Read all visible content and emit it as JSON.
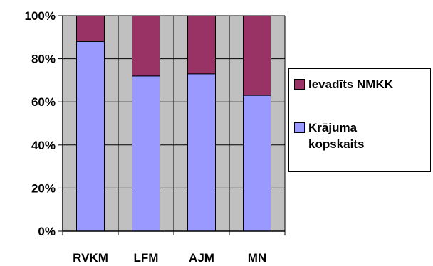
{
  "chart_data": {
    "type": "bar",
    "stacked": true,
    "percent": true,
    "categories": [
      "RVKM",
      "LFM",
      "AJM",
      "MN"
    ],
    "series": [
      {
        "name": "Krājuma kopskaits",
        "values": [
          88,
          72,
          73,
          63
        ],
        "color": "#9999ff"
      },
      {
        "name": "Ievadīts NMKK",
        "values": [
          12,
          28,
          27,
          37
        ],
        "color": "#993366"
      }
    ],
    "y_ticks": [
      "0%",
      "20%",
      "40%",
      "60%",
      "80%",
      "100%"
    ],
    "ylim": [
      0,
      100
    ],
    "grid": true,
    "plot_background": "#c0c0c0",
    "legend_position": "right"
  },
  "legend": {
    "items": [
      {
        "label": "Ievadīts NMKK",
        "color": "#993366"
      },
      {
        "label": "Krājuma kopskaits",
        "color": "#9999ff"
      }
    ]
  }
}
